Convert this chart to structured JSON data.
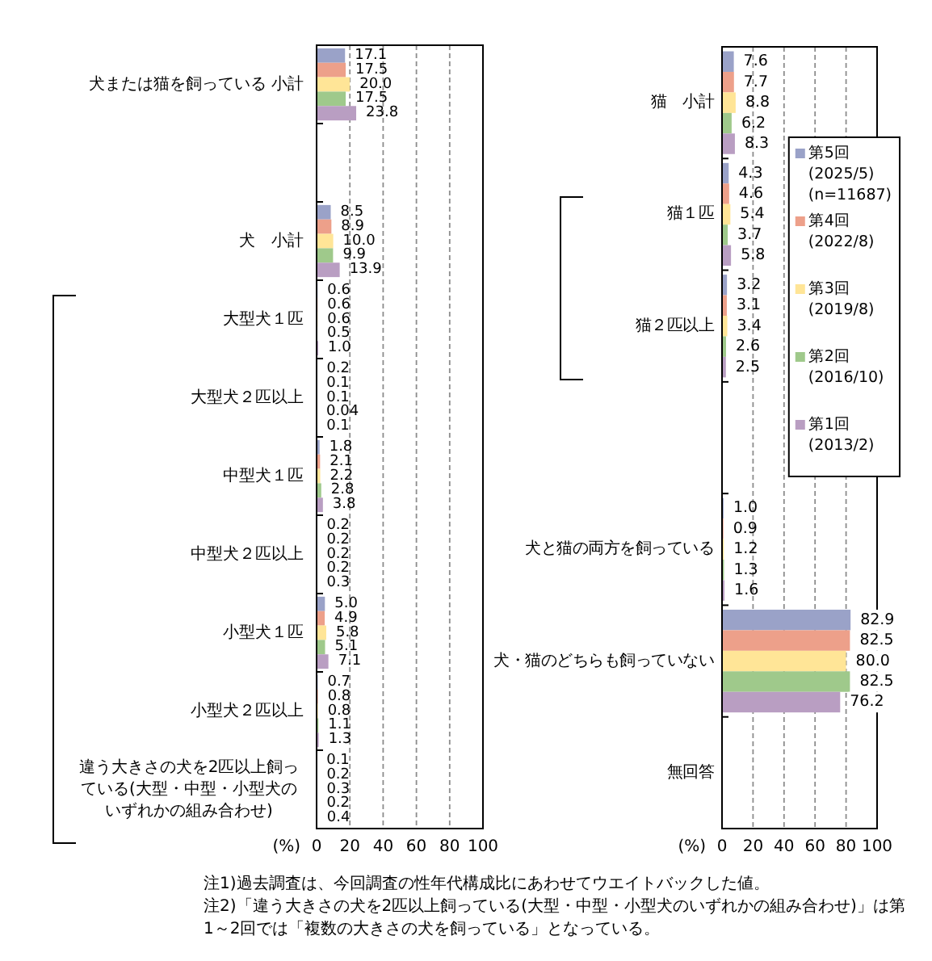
{
  "chart_data": [
    {
      "type": "bar",
      "orientation": "horizontal",
      "categories": [
        "犬または猫を飼っている 小計",
        null,
        "犬　小計",
        "大型犬１匹",
        "大型犬２匹以上",
        "中型犬１匹",
        "中型犬２匹以上",
        "小型犬１匹",
        "小型犬２匹以上",
        "違う大きさの犬を2匹以上飼っている(大型・中型・小型犬のいずれかの組み合わせ)"
      ],
      "series": [
        {
          "color": "#9aa2c8",
          "values": [
            17.1,
            null,
            8.5,
            0.6,
            0.2,
            1.8,
            0.2,
            5.0,
            0.7,
            0.1
          ],
          "value_labels": [
            "17.1",
            null,
            "8.5",
            "0.6",
            "0.2",
            "1.8",
            "0.2",
            "5.0",
            "0.7",
            "0.1"
          ]
        },
        {
          "color": "#eda08a",
          "values": [
            17.5,
            null,
            8.9,
            0.6,
            0.1,
            2.1,
            0.2,
            4.9,
            0.8,
            0.2
          ],
          "value_labels": [
            "17.5",
            null,
            "8.9",
            "0.6",
            "0.1",
            "2.1",
            "0.2",
            "4.9",
            "0.8",
            "0.2"
          ]
        },
        {
          "color": "#ffe597",
          "values": [
            20.0,
            null,
            10.0,
            0.6,
            0.1,
            2.2,
            0.2,
            5.8,
            0.8,
            0.3
          ],
          "value_labels": [
            "20.0",
            null,
            "10.0",
            "0.6",
            "0.1",
            "2.2",
            "0.2",
            "5.8",
            "0.8",
            "0.3"
          ]
        },
        {
          "color": "#9fc98b",
          "values": [
            17.5,
            null,
            9.9,
            0.5,
            0.04,
            2.8,
            0.2,
            5.1,
            1.1,
            0.2
          ],
          "value_labels": [
            "17.5",
            null,
            "9.9",
            "0.5",
            "0.04",
            "2.8",
            "0.2",
            "5.1",
            "1.1",
            "0.2"
          ]
        },
        {
          "color": "#b99ec2",
          "values": [
            23.8,
            null,
            13.9,
            1.0,
            0.1,
            3.8,
            0.3,
            7.1,
            1.3,
            0.4
          ],
          "value_labels": [
            "23.8",
            null,
            "13.9",
            "1.0",
            "0.1",
            "3.8",
            "0.3",
            "7.1",
            "1.3",
            "0.4"
          ]
        }
      ],
      "xlim": [
        0,
        100
      ],
      "xticks": [
        0,
        20,
        40,
        60,
        80,
        100
      ],
      "xlabel": "(%)",
      "grid": "x",
      "annotations": [
        "注1)過去調査は、今回調査の性年代構成比にあわせてウエイトバックした値。",
        "注2)「違う大きさの犬を2匹以上飼っている(大型・中型・小型犬のいずれかの組み合わせ)」は第1～2回では「複数の大きさの犬を飼っている」となっている。"
      ]
    },
    {
      "type": "bar",
      "orientation": "horizontal",
      "categories": [
        "猫　小計",
        "猫１匹",
        "猫２匹以上",
        null,
        "犬と猫の両方を飼っている",
        "犬・猫のどちらも飼っていない",
        "無回答"
      ],
      "series": [
        {
          "name": "第5回\n(2025/5)\n(n=11687)",
          "color": "#9aa2c8",
          "values": [
            7.6,
            4.3,
            3.2,
            null,
            1.0,
            82.9,
            null
          ],
          "value_labels": [
            "7.6",
            "4.3",
            "3.2",
            null,
            "1.0",
            "82.9",
            null
          ]
        },
        {
          "name": "第4回\n(2022/8)",
          "color": "#eda08a",
          "values": [
            7.7,
            4.6,
            3.1,
            null,
            0.9,
            82.5,
            null
          ],
          "value_labels": [
            "7.7",
            "4.6",
            "3.1",
            null,
            "0.9",
            "82.5",
            null
          ]
        },
        {
          "name": "第3回\n(2019/8)",
          "color": "#ffe597",
          "values": [
            8.8,
            5.4,
            3.4,
            null,
            1.2,
            80.0,
            null
          ],
          "value_labels": [
            "8.8",
            "5.4",
            "3.4",
            null,
            "1.2",
            "80.0",
            null
          ]
        },
        {
          "name": "第2回\n(2016/10)",
          "color": "#9fc98b",
          "values": [
            6.2,
            3.7,
            2.6,
            null,
            1.3,
            82.5,
            null
          ],
          "value_labels": [
            "6.2",
            "3.7",
            "2.6",
            null,
            "1.3",
            "82.5",
            null
          ]
        },
        {
          "name": "第1回\n(2013/2)",
          "color": "#b99ec2",
          "values": [
            8.3,
            5.8,
            2.5,
            null,
            1.6,
            76.2,
            null
          ],
          "value_labels": [
            "8.3",
            "5.8",
            "2.5",
            null,
            "1.6",
            "76.2",
            null
          ]
        }
      ],
      "xlim": [
        0,
        100
      ],
      "xticks": [
        0,
        20,
        40,
        60,
        80,
        100
      ],
      "xlabel": "(%)",
      "grid": "x",
      "legend": "top right"
    }
  ]
}
